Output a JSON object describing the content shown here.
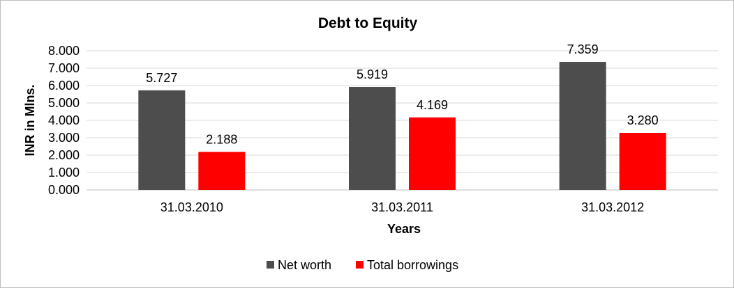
{
  "chart_data": {
    "type": "bar",
    "title": "Debt to Equity",
    "xlabel": "Years",
    "ylabel": "INR in Mlns.",
    "categories": [
      "31.03.2010",
      "31.03.2011",
      "31.03.2012"
    ],
    "series": [
      {
        "name": "Net worth",
        "values": [
          5.727,
          5.919,
          7.359
        ],
        "labels": [
          "5.727",
          "5.919",
          "7.359"
        ],
        "color": "#4d4d4d"
      },
      {
        "name": "Total borrowings",
        "values": [
          2.188,
          4.169,
          3.28
        ],
        "labels": [
          "2.188",
          "4.169",
          "3.280"
        ],
        "color": "#ff0000"
      }
    ],
    "ylim": [
      0,
      8
    ],
    "yticks": [
      "0.000",
      "1.000",
      "2.000",
      "3.000",
      "4.000",
      "5.000",
      "6.000",
      "7.000",
      "8.000"
    ],
    "grid": true,
    "legend": "bottom"
  }
}
